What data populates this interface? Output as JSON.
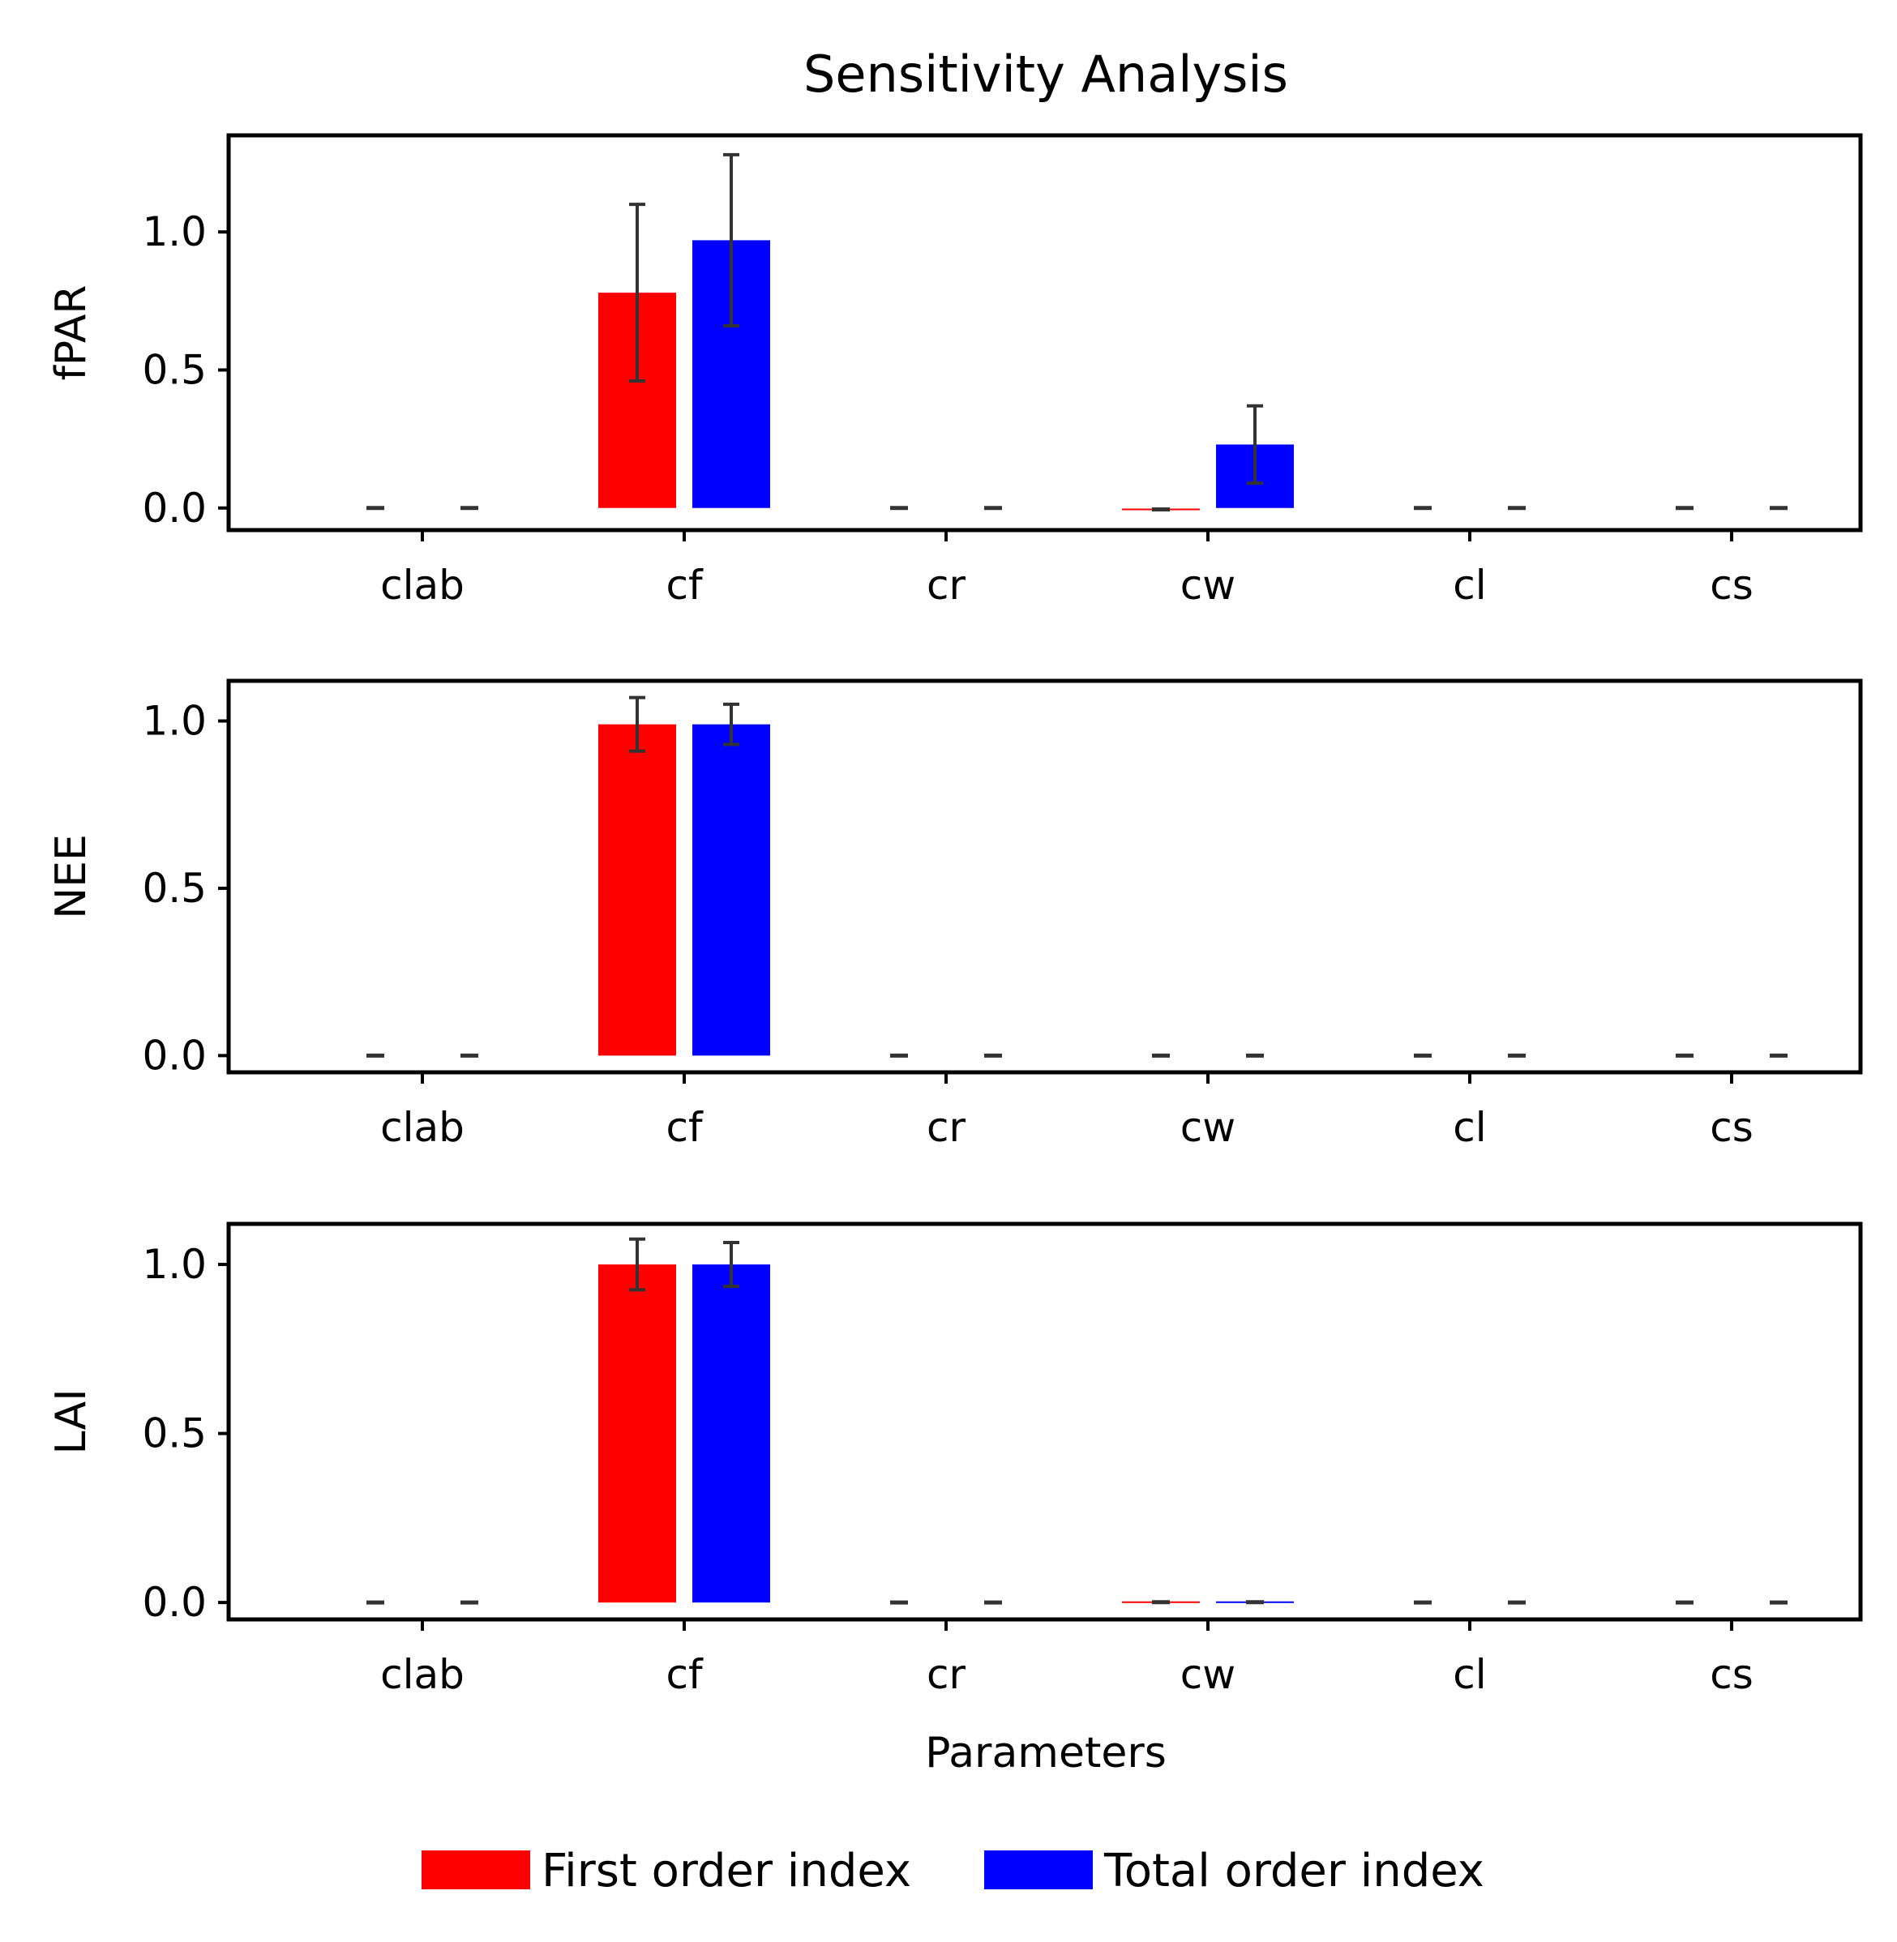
{
  "chart_data": {
    "type": "bar",
    "title": "Sensitivity Analysis",
    "xlabel": "Parameters",
    "categories": [
      "clab",
      "cf",
      "cr",
      "cw",
      "cl",
      "cs"
    ],
    "legend": {
      "placement": "bottom-center",
      "entries": [
        {
          "name": "First order index",
          "color": "#ff0000"
        },
        {
          "name": "Total order index",
          "color": "#0000ff"
        }
      ]
    },
    "error_bar_color": "#333333",
    "yticks": [
      "0.0",
      "0.5",
      "1.0"
    ],
    "panels": [
      {
        "ylabel": "fPAR",
        "ylim": [
          -0.08,
          1.35
        ],
        "series": [
          {
            "name": "First order index",
            "color": "#ff0000",
            "values": [
              0.0,
              0.78,
              0.0,
              -0.005,
              0.0,
              0.0
            ],
            "errors": [
              0.0,
              0.32,
              0.0,
              0.015,
              0.0,
              0.0
            ]
          },
          {
            "name": "Total order index",
            "color": "#0000ff",
            "values": [
              0.0,
              0.97,
              0.0,
              0.23,
              0.0,
              0.0
            ],
            "errors": [
              0.0,
              0.31,
              0.0,
              0.14,
              0.0,
              0.0
            ]
          }
        ]
      },
      {
        "ylabel": "NEE",
        "ylim": [
          -0.05,
          1.12
        ],
        "series": [
          {
            "name": "First order index",
            "color": "#ff0000",
            "values": [
              0.0,
              0.99,
              0.0,
              0.0,
              0.0,
              0.0
            ],
            "errors": [
              0.0,
              0.08,
              0.0,
              0.0,
              0.0,
              0.0
            ]
          },
          {
            "name": "Total order index",
            "color": "#0000ff",
            "values": [
              0.0,
              0.99,
              0.0,
              0.0,
              0.0,
              0.0
            ],
            "errors": [
              0.0,
              0.06,
              0.0,
              0.0,
              0.0,
              0.0
            ]
          }
        ]
      },
      {
        "ylabel": "LAI",
        "ylim": [
          -0.05,
          1.12
        ],
        "series": [
          {
            "name": "First order index",
            "color": "#ff0000",
            "values": [
              0.0,
              1.0,
              0.0,
              0.001,
              0.0,
              0.0
            ],
            "errors": [
              0.0,
              0.075,
              0.0,
              0.005,
              0.0,
              0.0
            ]
          },
          {
            "name": "Total order index",
            "color": "#0000ff",
            "values": [
              0.0,
              1.0,
              0.0,
              0.001,
              0.0,
              0.0
            ],
            "errors": [
              0.0,
              0.065,
              0.0,
              0.005,
              0.0,
              0.0
            ]
          }
        ]
      }
    ]
  }
}
